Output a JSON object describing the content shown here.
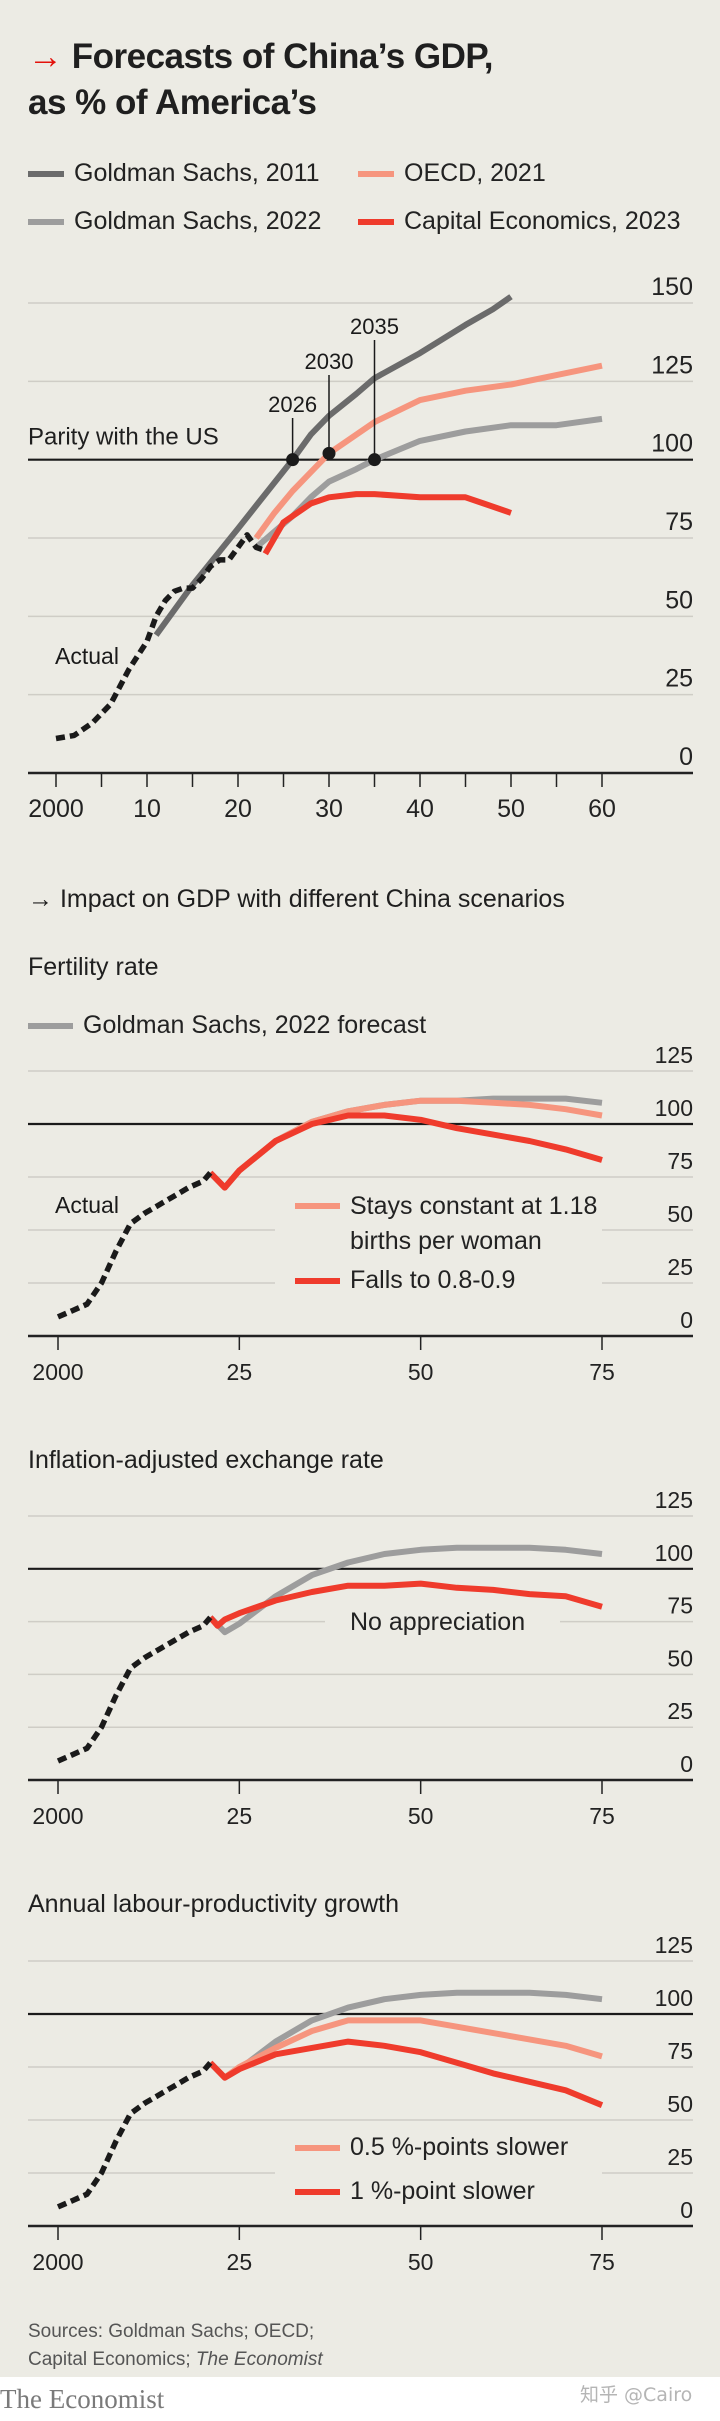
{
  "header": {
    "arrow": "→",
    "title_line1": "Forecasts of China’s GDP,",
    "title_line2": "as % of America’s"
  },
  "colors": {
    "background": "#ecebe4",
    "gs2011": "#6b6b6b",
    "gs2022": "#9d9d9d",
    "oecd2021": "#f6957e",
    "capital2023": "#ef3b2c",
    "actual": "#1a1a1a",
    "accent": "#e3120b"
  },
  "chart_data": [
    {
      "type": "line",
      "title": "Forecasts of China’s GDP, as % of America’s",
      "xlabel": "",
      "ylabel": "",
      "x_ticks": [
        2000,
        2010,
        2020,
        2030,
        2040,
        2050,
        2060
      ],
      "x_tick_labels": [
        "2000",
        "10",
        "20",
        "30",
        "40",
        "50",
        "60"
      ],
      "xlim": [
        2000,
        2069
      ],
      "y_ticks": [
        0,
        25,
        50,
        75,
        100,
        125,
        150
      ],
      "y_tick_labels": [
        "0",
        "25",
        "50",
        "75",
        "100",
        "125",
        "150"
      ],
      "ylim": [
        0,
        150
      ],
      "grid": true,
      "legend_placement": "top-left",
      "reference_line": {
        "value": 100,
        "label": "Parity with the US"
      },
      "annotations": [
        {
          "label": "2026",
          "x": 2026,
          "y": 100
        },
        {
          "label": "2030",
          "x": 2030,
          "y": 102
        },
        {
          "label": "2035",
          "x": 2035,
          "y": 100
        },
        {
          "label": "Actual",
          "x": 2004,
          "y": 30
        }
      ],
      "series": [
        {
          "name": "Actual",
          "key": "actual",
          "style": "dashed",
          "x": [
            2000,
            2002,
            2004,
            2006,
            2008,
            2010,
            2011,
            2012,
            2013,
            2014,
            2015,
            2016,
            2017,
            2018,
            2019,
            2020,
            2021,
            2022,
            2023
          ],
          "values": [
            11,
            12,
            16,
            22,
            33,
            42,
            50,
            55,
            58,
            59,
            59,
            62,
            66,
            68,
            68,
            72,
            76,
            72,
            71
          ]
        },
        {
          "name": "Goldman Sachs, 2011",
          "key": "gs2011",
          "x": [
            2011,
            2015,
            2020,
            2023,
            2026,
            2028,
            2030,
            2033,
            2035,
            2040,
            2045,
            2048,
            2050
          ],
          "values": [
            44,
            60,
            78,
            89,
            100,
            108,
            114,
            121,
            126,
            134,
            143,
            148,
            152
          ]
        },
        {
          "name": "Goldman Sachs, 2022",
          "key": "gs2022",
          "x": [
            2022,
            2024,
            2026,
            2028,
            2030,
            2033,
            2035,
            2040,
            2045,
            2050,
            2055,
            2060
          ],
          "values": [
            72,
            77,
            82,
            88,
            93,
            97,
            100,
            106,
            109,
            111,
            111,
            113
          ]
        },
        {
          "name": "OECD, 2021",
          "key": "oecd2021",
          "x": [
            2022,
            2024,
            2026,
            2028,
            2030,
            2033,
            2035,
            2040,
            2045,
            2050,
            2055,
            2060
          ],
          "values": [
            75,
            83,
            90,
            96,
            102,
            108,
            112,
            119,
            122,
            124,
            127,
            130
          ]
        },
        {
          "name": "Capital Economics, 2023",
          "key": "capital2023",
          "x": [
            2023,
            2024,
            2025,
            2027,
            2028,
            2030,
            2033,
            2035,
            2040,
            2045,
            2047,
            2050
          ],
          "values": [
            70,
            75,
            80,
            84,
            86,
            88,
            89,
            89,
            88,
            88,
            86,
            83
          ]
        }
      ]
    },
    {
      "type": "line",
      "title": "Fertility rate",
      "x_ticks": [
        2000,
        2025,
        2050,
        2075
      ],
      "x_tick_labels": [
        "2000",
        "25",
        "50",
        "75"
      ],
      "xlim": [
        2000,
        2090
      ],
      "y_ticks": [
        0,
        25,
        50,
        75,
        100,
        125
      ],
      "y_tick_labels": [
        "0",
        "25",
        "50",
        "75",
        "100",
        "125"
      ],
      "ylim": [
        0,
        125
      ],
      "grid": true,
      "reference_line": {
        "value": 100
      },
      "annotations": [
        {
          "label": "Actual",
          "x": 2004,
          "y": 58
        }
      ],
      "series": [
        {
          "name": "Actual",
          "key": "actual",
          "style": "dashed",
          "x": [
            2000,
            2002,
            2004,
            2006,
            2008,
            2010,
            2012,
            2014,
            2016,
            2018,
            2020,
            2021
          ],
          "values": [
            9,
            12,
            15,
            25,
            40,
            53,
            58,
            62,
            66,
            70,
            73,
            77
          ]
        },
        {
          "name": "Goldman Sachs, 2022 forecast",
          "key": "gs2022",
          "x": [
            2021,
            2023,
            2025,
            2030,
            2035,
            2040,
            2045,
            2050,
            2055,
            2060,
            2065,
            2070,
            2075
          ],
          "values": [
            77,
            70,
            78,
            92,
            101,
            106,
            109,
            111,
            111,
            112,
            112,
            112,
            110
          ]
        },
        {
          "name": "Stays constant at 1.18 births per woman",
          "key": "oecd2021",
          "x": [
            2021,
            2023,
            2025,
            2030,
            2035,
            2040,
            2045,
            2050,
            2055,
            2060,
            2065,
            2070,
            2075
          ],
          "values": [
            77,
            70,
            78,
            92,
            101,
            106,
            109,
            111,
            111,
            110,
            109,
            107,
            104
          ]
        },
        {
          "name": "Falls to 0.8-0.9",
          "key": "capital2023",
          "x": [
            2021,
            2023,
            2025,
            2030,
            2035,
            2040,
            2045,
            2050,
            2055,
            2060,
            2065,
            2070,
            2075
          ],
          "values": [
            77,
            70,
            78,
            92,
            100,
            104,
            104,
            102,
            98,
            95,
            92,
            88,
            83
          ]
        }
      ]
    },
    {
      "type": "line",
      "title": "Inflation-adjusted exchange rate",
      "x_ticks": [
        2000,
        2025,
        2050,
        2075
      ],
      "x_tick_labels": [
        "2000",
        "25",
        "50",
        "75"
      ],
      "xlim": [
        2000,
        2090
      ],
      "y_ticks": [
        0,
        25,
        50,
        75,
        100,
        125
      ],
      "y_tick_labels": [
        "0",
        "25",
        "50",
        "75",
        "100",
        "125"
      ],
      "ylim": [
        0,
        125
      ],
      "grid": true,
      "reference_line": {
        "value": 100
      },
      "annotations": [
        {
          "label": "No appreciation",
          "x": 2048,
          "y": 76
        }
      ],
      "series": [
        {
          "name": "Actual",
          "key": "actual",
          "style": "dashed",
          "x": [
            2000,
            2002,
            2004,
            2006,
            2008,
            2010,
            2012,
            2014,
            2016,
            2018,
            2020,
            2021
          ],
          "values": [
            9,
            12,
            15,
            25,
            40,
            53,
            58,
            62,
            66,
            70,
            73,
            77
          ]
        },
        {
          "name": "Goldman Sachs, 2022 forecast",
          "key": "gs2022",
          "x": [
            2021,
            2023,
            2025,
            2030,
            2035,
            2040,
            2045,
            2050,
            2055,
            2060,
            2065,
            2070,
            2075
          ],
          "values": [
            77,
            70,
            74,
            87,
            97,
            103,
            107,
            109,
            110,
            110,
            110,
            109,
            107
          ]
        },
        {
          "name": "No appreciation",
          "key": "capital2023",
          "x": [
            2021,
            2022,
            2023,
            2025,
            2030,
            2035,
            2040,
            2045,
            2050,
            2055,
            2060,
            2065,
            2070,
            2075
          ],
          "values": [
            77,
            73,
            76,
            79,
            85,
            89,
            92,
            92,
            93,
            91,
            90,
            88,
            87,
            82
          ]
        }
      ]
    },
    {
      "type": "line",
      "title": "Annual labour-productivity growth",
      "x_ticks": [
        2000,
        2025,
        2050,
        2075
      ],
      "x_tick_labels": [
        "2000",
        "25",
        "50",
        "75"
      ],
      "xlim": [
        2000,
        2090
      ],
      "y_ticks": [
        0,
        25,
        50,
        75,
        100,
        125
      ],
      "y_tick_labels": [
        "0",
        "25",
        "50",
        "75",
        "100",
        "125"
      ],
      "ylim": [
        0,
        125
      ],
      "grid": true,
      "reference_line": {
        "value": 100
      },
      "series": [
        {
          "name": "Actual",
          "key": "actual",
          "style": "dashed",
          "x": [
            2000,
            2002,
            2004,
            2006,
            2008,
            2010,
            2012,
            2014,
            2016,
            2018,
            2020,
            2021
          ],
          "values": [
            9,
            12,
            15,
            25,
            40,
            53,
            58,
            62,
            66,
            70,
            73,
            77
          ]
        },
        {
          "name": "Goldman Sachs, 2022 forecast",
          "key": "gs2022",
          "x": [
            2021,
            2023,
            2025,
            2030,
            2035,
            2040,
            2045,
            2050,
            2055,
            2060,
            2065,
            2070,
            2075
          ],
          "values": [
            77,
            70,
            74,
            87,
            97,
            103,
            107,
            109,
            110,
            110,
            110,
            109,
            107
          ]
        },
        {
          "name": "0.5 %-points slower",
          "key": "oecd2021",
          "x": [
            2021,
            2023,
            2025,
            2030,
            2035,
            2040,
            2045,
            2050,
            2055,
            2060,
            2065,
            2070,
            2075
          ],
          "values": [
            77,
            70,
            75,
            84,
            92,
            97,
            97,
            97,
            94,
            91,
            88,
            85,
            80
          ]
        },
        {
          "name": "1 %-point slower",
          "key": "capital2023",
          "x": [
            2021,
            2023,
            2025,
            2030,
            2035,
            2040,
            2045,
            2050,
            2055,
            2060,
            2065,
            2070,
            2075
          ],
          "values": [
            77,
            70,
            74,
            81,
            84,
            87,
            85,
            82,
            77,
            72,
            68,
            64,
            57
          ]
        }
      ]
    }
  ],
  "legend1": [
    {
      "label": "Goldman Sachs, 2011",
      "key": "gs2011"
    },
    {
      "label": "OECD, 2021",
      "key": "oecd2021"
    },
    {
      "label": "Goldman Sachs, 2022",
      "key": "gs2022"
    },
    {
      "label": "Capital Economics, 2023",
      "key": "capital2023"
    }
  ],
  "section2": {
    "arrow": "→",
    "title": "Impact on GDP with different China scenarios",
    "legend_label": "Goldman Sachs, 2022 forecast"
  },
  "panel2_legend": {
    "a_line1": "Stays constant at 1.18",
    "a_line2": "births per woman",
    "b": "Falls to 0.8-0.9"
  },
  "panel4_legend": {
    "a": "0.5 %-points slower",
    "b": "1 %-point slower"
  },
  "footer": {
    "sources_line1": "Sources: Goldman Sachs; OECD;",
    "sources_line2_prefix": "Capital Economics; ",
    "sources_line2_italic": "The Economist",
    "brand": "The Economist",
    "watermark": "知乎 @Cairo"
  }
}
